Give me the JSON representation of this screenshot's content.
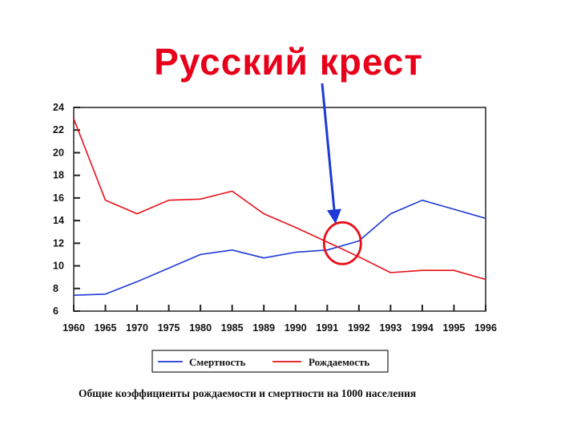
{
  "title": "Русский крест",
  "caption": "Общие коэффициенты рождаемости и смертности на 1000 населения",
  "colors": {
    "mortality": "#1e3ad6",
    "birth": "#e8101a",
    "annotation_arrow": "#1e3ad6",
    "annotation_circle": "#e8101a"
  },
  "chart_data": {
    "type": "line",
    "title": "Русский крест",
    "xlabel": "",
    "ylabel": "",
    "x": [
      "1960",
      "1965",
      "1970",
      "1975",
      "1980",
      "1985",
      "1989",
      "1990",
      "1991",
      "1992",
      "1993",
      "1994",
      "1995",
      "1996"
    ],
    "ylim": [
      6,
      24
    ],
    "yticks": [
      6,
      8,
      10,
      12,
      14,
      16,
      18,
      20,
      22,
      24
    ],
    "grid": false,
    "legend_position": "bottom",
    "series": [
      {
        "name": "Смертность",
        "color": "#1e3ad6",
        "values": [
          7.4,
          7.5,
          8.6,
          9.8,
          11.0,
          11.4,
          10.7,
          11.2,
          11.4,
          12.2,
          14.6,
          15.8,
          15.0,
          14.2
        ]
      },
      {
        "name": "Рождаемость",
        "color": "#e8101a",
        "values": [
          23.0,
          15.8,
          14.6,
          15.8,
          15.9,
          16.6,
          14.6,
          13.4,
          12.1,
          10.8,
          9.4,
          9.6,
          9.6,
          8.8
        ]
      }
    ],
    "annotation": {
      "type": "circle-with-arrow",
      "near_x": "1991",
      "meaning": "crossing point"
    }
  }
}
